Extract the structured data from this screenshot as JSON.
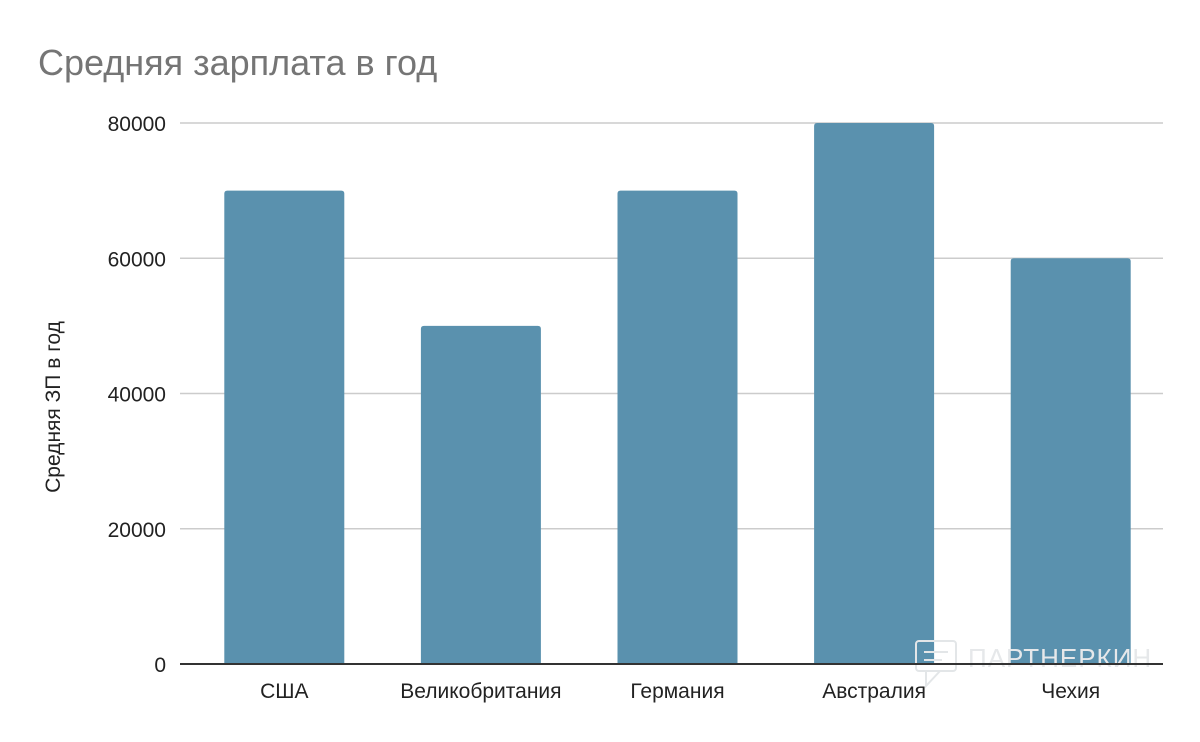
{
  "chart_data": {
    "type": "bar",
    "title": "Средняя зарплата в год",
    "xlabel": "",
    "ylabel": "Средняя ЗП в год",
    "categories": [
      "США",
      "Великобритания",
      "Германия",
      "Австралия",
      "Чехия"
    ],
    "values": [
      70000,
      50000,
      70000,
      80000,
      60000
    ],
    "ylim": [
      0,
      80000
    ],
    "yticks": [
      "0",
      "20000",
      "40000",
      "60000",
      "80000"
    ],
    "grid": true,
    "bar_color": "#5a91ae",
    "grid_color": "#cccccc",
    "axis_color": "#333333"
  },
  "watermark": {
    "text": "ПАРТНЕРКИН",
    "icon": "chat-bubble-icon"
  }
}
